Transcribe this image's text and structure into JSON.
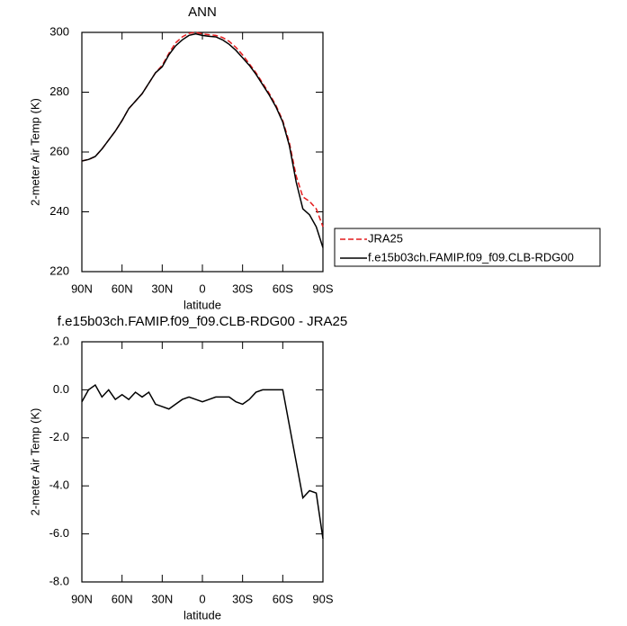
{
  "chart_data": [
    {
      "type": "line",
      "title": "ANN",
      "x_label": "latitude",
      "y_label": "2-meter Air Temp (K)",
      "x": [
        90,
        85,
        80,
        75,
        70,
        65,
        60,
        55,
        50,
        45,
        40,
        35,
        30,
        25,
        20,
        15,
        10,
        5,
        0,
        -5,
        -10,
        -15,
        -20,
        -25,
        -30,
        -35,
        -40,
        -45,
        -50,
        -55,
        -60,
        -65,
        -70,
        -75,
        -80,
        -85,
        -90
      ],
      "series": [
        {
          "name": "JRA25",
          "color": "#e41a1c",
          "dash": true,
          "values": [
            257,
            257.5,
            258.5,
            261,
            264,
            267,
            270.5,
            274.5,
            277,
            279.5,
            283,
            286.5,
            289,
            293,
            296.5,
            298.5,
            299.7,
            300,
            299.5,
            299.2,
            299,
            298.3,
            297,
            295,
            292.5,
            289.5,
            286.5,
            283,
            279.5,
            275.5,
            270.5,
            263,
            252,
            245,
            243.5,
            241,
            235
          ]
        },
        {
          "name": "f.e15b03ch.FAMIP.f09_f09.CLB-RDG00",
          "color": "#000000",
          "dash": false,
          "values": [
            257,
            257.5,
            258.5,
            261,
            264,
            267,
            270.5,
            274.5,
            277,
            279.5,
            283,
            286.5,
            288.5,
            292.5,
            295.5,
            297.5,
            299,
            299.5,
            299,
            298.7,
            298.5,
            297.5,
            296,
            294,
            291.5,
            289,
            286,
            282.5,
            279,
            275,
            270,
            262,
            250,
            241,
            239,
            235,
            228
          ]
        }
      ],
      "xlim": [
        90,
        -90
      ],
      "xticks": [
        {
          "value": 90,
          "label": "90N"
        },
        {
          "value": 60,
          "label": "60N"
        },
        {
          "value": 30,
          "label": "30N"
        },
        0,
        {
          "value": -30,
          "label": "30S"
        },
        {
          "value": -60,
          "label": "60S"
        },
        {
          "value": -90,
          "label": "90S"
        }
      ],
      "ylim": [
        220,
        300
      ],
      "yticks": [
        220,
        240,
        260,
        280,
        300
      ],
      "legend": "right"
    },
    {
      "type": "line",
      "title": "f.e15b03ch.FAMIP.f09_f09.CLB-RDG00 - JRA25",
      "x_label": "latitude",
      "y_label": "2-meter Air Temp (K)",
      "x": [
        90,
        85,
        80,
        75,
        70,
        65,
        60,
        55,
        50,
        45,
        40,
        35,
        30,
        25,
        20,
        15,
        10,
        5,
        0,
        -5,
        -10,
        -15,
        -20,
        -25,
        -30,
        -35,
        -40,
        -45,
        -50,
        -55,
        -60,
        -65,
        -70,
        -75,
        -80,
        -85,
        -90
      ],
      "series": [
        {
          "color": "#000000",
          "dash": false,
          "values": [
            -0.5,
            0,
            0.2,
            -0.3,
            0,
            -0.4,
            -0.2,
            -0.4,
            -0.1,
            -0.3,
            -0.1,
            -0.6,
            -0.7,
            -0.8,
            -0.6,
            -0.4,
            -0.3,
            -0.4,
            -0.5,
            -0.4,
            -0.3,
            -0.3,
            -0.3,
            -0.5,
            -0.6,
            -0.4,
            -0.1,
            0,
            0,
            0,
            0,
            -1.5,
            -3,
            -4.5,
            -4.2,
            -4.3,
            -6.2
          ]
        }
      ],
      "xlim": [
        90,
        -90
      ],
      "xticks": [
        {
          "value": 90,
          "label": "90N"
        },
        {
          "value": 60,
          "label": "60N"
        },
        {
          "value": 30,
          "label": "30N"
        },
        0,
        {
          "value": -30,
          "label": "30S"
        },
        {
          "value": -60,
          "label": "60S"
        },
        {
          "value": -90,
          "label": "90S"
        }
      ],
      "ylim": [
        -8,
        2
      ],
      "yticks": [
        {
          "value": -8,
          "label": "-8.0"
        },
        {
          "value": -6,
          "label": "-6.0"
        },
        {
          "value": -4,
          "label": "-4.0"
        },
        {
          "value": -2,
          "label": "-2.0"
        },
        {
          "value": 0,
          "label": "0.0"
        },
        {
          "value": 2,
          "label": "2.0"
        }
      ]
    }
  ]
}
